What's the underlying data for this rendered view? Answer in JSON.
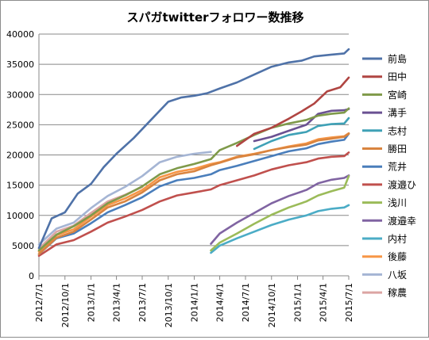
{
  "chart_data": {
    "type": "line",
    "title": "スパガtwitterフォロワー数推移",
    "xlabel": "",
    "ylabel": "",
    "ylim": [
      0,
      40000
    ],
    "y_ticks": [
      0,
      5000,
      10000,
      15000,
      20000,
      25000,
      30000,
      35000,
      40000
    ],
    "x_start": "2012/7/1",
    "x_end": "2015/7/1",
    "x_tick_labels": [
      "2012/7/1",
      "2012/10/1",
      "2013/1/1",
      "2013/4/1",
      "2013/7/1",
      "2013/10/1",
      "2014/1/1",
      "2014/4/1",
      "2014/7/1",
      "2014/10/1",
      "2015/1/1",
      "2015/4/1",
      "2015/7/1"
    ],
    "grid": "horizontal",
    "legend_position": "right",
    "series": [
      {
        "name": "前島",
        "color": "#4f72a8",
        "points": [
          [
            "2012/7/1",
            4600
          ],
          [
            "2012/8/15",
            9500
          ],
          [
            "2012/10/1",
            10500
          ],
          [
            "2012/11/15",
            13600
          ],
          [
            "2013/1/1",
            15200
          ],
          [
            "2013/2/15",
            18000
          ],
          [
            "2013/4/1",
            20200
          ],
          [
            "2013/6/1",
            22800
          ],
          [
            "2013/8/1",
            25800
          ],
          [
            "2013/10/1",
            28800
          ],
          [
            "2013/11/15",
            29500
          ],
          [
            "2014/1/1",
            29800
          ],
          [
            "2014/2/15",
            30200
          ],
          [
            "2014/4/1",
            31000
          ],
          [
            "2014/6/1",
            32000
          ],
          [
            "2014/8/1",
            33300
          ],
          [
            "2014/10/1",
            34600
          ],
          [
            "2014/12/1",
            35300
          ],
          [
            "2015/1/15",
            35600
          ],
          [
            "2015/3/1",
            36300
          ],
          [
            "2015/5/1",
            36600
          ],
          [
            "2015/6/15",
            36800
          ],
          [
            "2015/7/1",
            37500
          ]
        ]
      },
      {
        "name": "田中",
        "color": "#b04542",
        "points": [
          [
            "2014/6/1",
            21500
          ],
          [
            "2014/8/1",
            23500
          ],
          [
            "2014/10/1",
            24500
          ],
          [
            "2014/12/1",
            26000
          ],
          [
            "2015/1/15",
            27200
          ],
          [
            "2015/3/1",
            28500
          ],
          [
            "2015/4/15",
            30500
          ],
          [
            "2015/6/1",
            31200
          ],
          [
            "2015/7/1",
            32800
          ]
        ]
      },
      {
        "name": "宮崎",
        "color": "#7f9a4a",
        "points": [
          [
            "2012/7/1",
            4200
          ],
          [
            "2012/9/1",
            6800
          ],
          [
            "2012/11/1",
            8200
          ],
          [
            "2013/1/1",
            10000
          ],
          [
            "2013/3/1",
            12000
          ],
          [
            "2013/5/1",
            13300
          ],
          [
            "2013/7/1",
            14800
          ],
          [
            "2013/9/1",
            16800
          ],
          [
            "2013/11/1",
            17800
          ],
          [
            "2014/1/1",
            18500
          ],
          [
            "2014/3/1",
            19300
          ],
          [
            "2014/4/1",
            20800
          ],
          [
            "2014/6/1",
            22000
          ],
          [
            "2014/8/1",
            23300
          ],
          [
            "2014/10/1",
            24500
          ],
          [
            "2014/12/1",
            25200
          ],
          [
            "2015/2/1",
            25800
          ],
          [
            "2015/3/15",
            26500
          ],
          [
            "2015/5/1",
            26800
          ],
          [
            "2015/6/15",
            27000
          ],
          [
            "2015/7/1",
            27700
          ]
        ]
      },
      {
        "name": "溝手",
        "color": "#6a5192",
        "points": [
          [
            "2014/8/1",
            22300
          ],
          [
            "2014/10/1",
            23000
          ],
          [
            "2014/12/1",
            24000
          ],
          [
            "2015/2/1",
            25000
          ],
          [
            "2015/3/15",
            26800
          ],
          [
            "2015/5/1",
            27300
          ],
          [
            "2015/6/15",
            27400
          ],
          [
            "2015/7/1",
            27600
          ]
        ]
      },
      {
        "name": "志村",
        "color": "#3fa1b6",
        "points": [
          [
            "2014/8/1",
            21000
          ],
          [
            "2014/10/1",
            22300
          ],
          [
            "2014/12/1",
            23300
          ],
          [
            "2015/2/1",
            23800
          ],
          [
            "2015/3/15",
            24800
          ],
          [
            "2015/5/1",
            25100
          ],
          [
            "2015/6/15",
            25200
          ],
          [
            "2015/7/1",
            26100
          ]
        ]
      },
      {
        "name": "勝田",
        "color": "#d9843f",
        "points": [
          [
            "2012/7/1",
            3600
          ],
          [
            "2012/9/1",
            6300
          ],
          [
            "2012/11/1",
            7300
          ],
          [
            "2013/1/1",
            9300
          ],
          [
            "2013/3/1",
            11300
          ],
          [
            "2013/5/1",
            12300
          ],
          [
            "2013/7/1",
            13800
          ],
          [
            "2013/9/1",
            15800
          ],
          [
            "2013/11/1",
            16800
          ],
          [
            "2014/1/1",
            17300
          ],
          [
            "2014/3/1",
            18300
          ],
          [
            "2014/4/1",
            18700
          ],
          [
            "2014/6/1",
            19600
          ],
          [
            "2014/8/1",
            20100
          ],
          [
            "2014/10/1",
            20800
          ],
          [
            "2014/12/1",
            21300
          ],
          [
            "2015/2/1",
            21700
          ],
          [
            "2015/3/15",
            22400
          ],
          [
            "2015/5/1",
            22700
          ],
          [
            "2015/6/15",
            23000
          ],
          [
            "2015/7/1",
            23500
          ]
        ]
      },
      {
        "name": "荒井",
        "color": "#4a7ebb",
        "points": [
          [
            "2012/7/1",
            3600
          ],
          [
            "2012/9/1",
            6200
          ],
          [
            "2012/11/1",
            7000
          ],
          [
            "2013/1/1",
            8700
          ],
          [
            "2013/3/1",
            10500
          ],
          [
            "2013/5/1",
            11700
          ],
          [
            "2013/7/1",
            13000
          ],
          [
            "2013/9/1",
            14800
          ],
          [
            "2013/11/1",
            15800
          ],
          [
            "2014/1/1",
            16200
          ],
          [
            "2014/3/1",
            16800
          ],
          [
            "2014/4/1",
            17500
          ],
          [
            "2014/6/1",
            18200
          ],
          [
            "2014/8/1",
            19000
          ],
          [
            "2014/10/1",
            19800
          ],
          [
            "2014/12/1",
            20600
          ],
          [
            "2015/2/1",
            21100
          ],
          [
            "2015/3/15",
            21800
          ],
          [
            "2015/5/1",
            22200
          ],
          [
            "2015/6/15",
            22500
          ],
          [
            "2015/7/1",
            23500
          ]
        ]
      },
      {
        "name": "渡邉ひ",
        "color": "#c0504d",
        "points": [
          [
            "2012/7/1",
            3300
          ],
          [
            "2012/9/1",
            5200
          ],
          [
            "2012/11/1",
            5900
          ],
          [
            "2013/1/1",
            7300
          ],
          [
            "2013/3/1",
            8800
          ],
          [
            "2013/5/1",
            9800
          ],
          [
            "2013/7/1",
            10900
          ],
          [
            "2013/9/1",
            12300
          ],
          [
            "2013/11/1",
            13300
          ],
          [
            "2014/1/1",
            13800
          ],
          [
            "2014/3/1",
            14300
          ],
          [
            "2014/4/1",
            15000
          ],
          [
            "2014/6/1",
            15800
          ],
          [
            "2014/8/1",
            16600
          ],
          [
            "2014/10/1",
            17600
          ],
          [
            "2014/12/1",
            18300
          ],
          [
            "2015/2/1",
            18800
          ],
          [
            "2015/3/15",
            19400
          ],
          [
            "2015/5/1",
            19700
          ],
          [
            "2015/6/15",
            19800
          ],
          [
            "2015/7/1",
            20400
          ]
        ]
      },
      {
        "name": "浅川",
        "color": "#9bbb59",
        "points": [
          [
            "2014/3/1",
            4200
          ],
          [
            "2014/4/1",
            5500
          ],
          [
            "2014/6/1",
            7000
          ],
          [
            "2014/8/1",
            8600
          ],
          [
            "2014/10/1",
            10100
          ],
          [
            "2014/12/1",
            11300
          ],
          [
            "2015/2/1",
            12300
          ],
          [
            "2015/3/15",
            13300
          ],
          [
            "2015/5/1",
            14000
          ],
          [
            "2015/6/15",
            14600
          ],
          [
            "2015/7/1",
            16500
          ]
        ]
      },
      {
        "name": "渡邉幸",
        "color": "#8064a2",
        "points": [
          [
            "2014/3/1",
            5300
          ],
          [
            "2014/4/1",
            7000
          ],
          [
            "2014/6/1",
            8800
          ],
          [
            "2014/8/1",
            10400
          ],
          [
            "2014/10/1",
            12000
          ],
          [
            "2014/12/1",
            13200
          ],
          [
            "2015/2/1",
            14200
          ],
          [
            "2015/3/15",
            15300
          ],
          [
            "2015/5/1",
            15900
          ],
          [
            "2015/6/15",
            16200
          ],
          [
            "2015/7/1",
            16600
          ]
        ]
      },
      {
        "name": "内村",
        "color": "#4bacc6",
        "points": [
          [
            "2014/3/1",
            3800
          ],
          [
            "2014/4/1",
            5000
          ],
          [
            "2014/6/1",
            6200
          ],
          [
            "2014/8/1",
            7300
          ],
          [
            "2014/10/1",
            8400
          ],
          [
            "2014/12/1",
            9300
          ],
          [
            "2015/2/1",
            10000
          ],
          [
            "2015/3/15",
            10700
          ],
          [
            "2015/5/1",
            11100
          ],
          [
            "2015/6/15",
            11300
          ],
          [
            "2015/7/1",
            11700
          ]
        ]
      },
      {
        "name": "後藤",
        "color": "#f79646",
        "points": [
          [
            "2012/7/1",
            4000
          ],
          [
            "2012/9/1",
            6700
          ],
          [
            "2012/11/1",
            7700
          ],
          [
            "2013/1/1",
            9800
          ],
          [
            "2013/3/1",
            11700
          ],
          [
            "2013/5/1",
            12800
          ],
          [
            "2013/7/1",
            14200
          ],
          [
            "2013/9/1",
            16300
          ],
          [
            "2013/11/1",
            17200
          ],
          [
            "2014/1/1",
            17700
          ],
          [
            "2014/3/1",
            18500
          ],
          [
            "2014/4/1",
            18800
          ],
          [
            "2014/6/1",
            19700
          ],
          [
            "2014/8/1",
            20200
          ],
          [
            "2014/10/1",
            20800
          ],
          [
            "2014/12/1",
            21400
          ],
          [
            "2015/2/1",
            21900
          ],
          [
            "2015/3/15",
            22600
          ],
          [
            "2015/5/1",
            22900
          ],
          [
            "2015/6/15",
            23100
          ],
          [
            "2015/7/1",
            23600
          ]
        ]
      },
      {
        "name": "八坂",
        "color": "#a5b5d4",
        "points": [
          [
            "2012/7/1",
            5200
          ],
          [
            "2012/9/1",
            7800
          ],
          [
            "2012/11/1",
            8800
          ],
          [
            "2013/1/1",
            11200
          ],
          [
            "2013/3/1",
            13200
          ],
          [
            "2013/5/1",
            14700
          ],
          [
            "2013/7/1",
            16500
          ],
          [
            "2013/9/1",
            18800
          ],
          [
            "2013/11/1",
            19700
          ],
          [
            "2014/1/1",
            20200
          ],
          [
            "2014/3/1",
            20500
          ]
        ]
      },
      {
        "name": "稼農",
        "color": "#dca5a3",
        "points": [
          [
            "2012/7/1",
            4500
          ],
          [
            "2012/9/1",
            7300
          ],
          [
            "2012/11/1",
            8300
          ],
          [
            "2013/1/1",
            10400
          ],
          [
            "2013/3/1",
            12300
          ],
          [
            "2013/5/1",
            13400
          ],
          [
            "2013/7/1",
            14700
          ]
        ]
      }
    ]
  }
}
